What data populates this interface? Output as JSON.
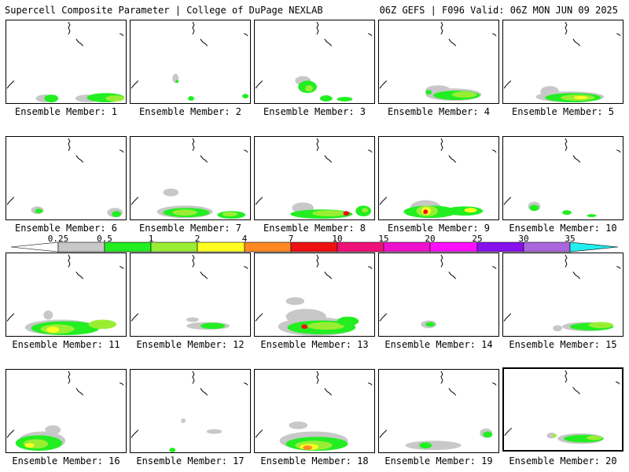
{
  "header": {
    "left": "Supercell Composite Parameter | College of DuPage NEXLAB",
    "right": "06Z GEFS | F096 Valid: 06Z MON JUN 09 2025"
  },
  "panels": [
    {
      "label": "Ensemble Member: 1"
    },
    {
      "label": "Ensemble Member: 2"
    },
    {
      "label": "Ensemble Member: 3"
    },
    {
      "label": "Ensemble Member: 4"
    },
    {
      "label": "Ensemble Member: 5"
    },
    {
      "label": "Ensemble Member: 6"
    },
    {
      "label": "Ensemble Member: 7"
    },
    {
      "label": "Ensemble Member: 8"
    },
    {
      "label": "Ensemble Member: 9"
    },
    {
      "label": "Ensemble Member: 10"
    },
    {
      "label": "Ensemble Member: 11"
    },
    {
      "label": "Ensemble Member: 12"
    },
    {
      "label": "Ensemble Member: 13"
    },
    {
      "label": "Ensemble Member: 14"
    },
    {
      "label": "Ensemble Member: 15"
    },
    {
      "label": "Ensemble Member: 16"
    },
    {
      "label": "Ensemble Member: 17"
    },
    {
      "label": "Ensemble Member: 18"
    },
    {
      "label": "Ensemble Member: 19"
    },
    {
      "label": "Ensemble Member: 20"
    }
  ],
  "colorbar": {
    "ticks": [
      "0.25",
      "0.5",
      "1",
      "2",
      "4",
      "7",
      "10",
      "15",
      "20",
      "25",
      "30",
      "35"
    ],
    "colors": [
      "#ffffff",
      "#c8c8c8",
      "#22ee22",
      "#99ee33",
      "#ffff22",
      "#ff8822",
      "#ee1111",
      "#ee1177",
      "#ee11cc",
      "#ff11ff",
      "#8811ee",
      "#aa66dd",
      "#22eeee"
    ]
  },
  "palette": {
    "gray": "#c8c8c8",
    "green": "#22ee22",
    "lightgreen": "#99ee33",
    "yellow": "#ffff22",
    "orange": "#ff8822",
    "red": "#ee1111"
  }
}
